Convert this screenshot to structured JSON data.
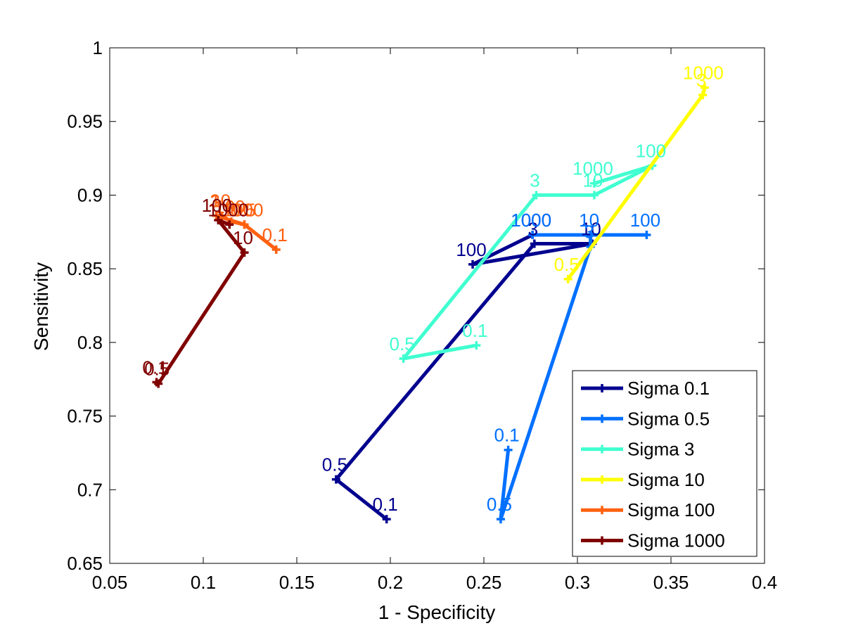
{
  "chart_data": {
    "type": "line",
    "xlabel": "1 - Specificity",
    "ylabel": "Sensitivity",
    "xlim": [
      0.05,
      0.4
    ],
    "ylim": [
      0.65,
      1
    ],
    "x_ticks": [
      0.05,
      0.1,
      0.15,
      0.2,
      0.25,
      0.3,
      0.35,
      0.4
    ],
    "x_tick_labels": [
      "0.05",
      "0.1",
      "0.15",
      "0.2",
      "0.25",
      "0.3",
      "0.35",
      "0.4"
    ],
    "y_ticks": [
      0.65,
      0.7,
      0.75,
      0.8,
      0.85,
      0.9,
      0.95,
      1
    ],
    "y_tick_labels": [
      "0.65",
      "0.7",
      "0.75",
      "0.8",
      "0.85",
      "0.9",
      "0.95",
      "1"
    ],
    "grid": false,
    "legend_position": "bottom-right",
    "series": [
      {
        "name": "Sigma 0.1",
        "color": "#00008f",
        "points": [
          {
            "label": "0.1",
            "x": 0.198,
            "y": 0.68
          },
          {
            "label": "0.5",
            "x": 0.171,
            "y": 0.707
          },
          {
            "label": "3",
            "x": 0.277,
            "y": 0.867
          },
          {
            "label": "10",
            "x": 0.308,
            "y": 0.867
          },
          {
            "label": "100",
            "x": 0.244,
            "y": 0.853
          },
          {
            "label": "1000",
            "x": 0.276,
            "y": 0.873
          }
        ]
      },
      {
        "name": "Sigma 0.5",
        "color": "#0070ff",
        "points": [
          {
            "label": "0.1",
            "x": 0.263,
            "y": 0.727
          },
          {
            "label": "0.5",
            "x": 0.259,
            "y": 0.68
          },
          {
            "label": "3",
            "x": 0.307,
            "y": 0.865
          },
          {
            "label": "10",
            "x": 0.307,
            "y": 0.873
          },
          {
            "label": "100",
            "x": 0.337,
            "y": 0.873
          },
          {
            "label": "1000",
            "x": 0.276,
            "y": 0.873
          }
        ]
      },
      {
        "name": "Sigma 3",
        "color": "#40ffd0",
        "points": [
          {
            "label": "0.1",
            "x": 0.246,
            "y": 0.798
          },
          {
            "label": "0.5",
            "x": 0.207,
            "y": 0.789
          },
          {
            "label": "3",
            "x": 0.278,
            "y": 0.9
          },
          {
            "label": "10",
            "x": 0.309,
            "y": 0.9
          },
          {
            "label": "100",
            "x": 0.34,
            "y": 0.92
          },
          {
            "label": "1000",
            "x": 0.309,
            "y": 0.908
          }
        ]
      },
      {
        "name": "Sigma 10",
        "color": "#ffff00",
        "points": [
          {
            "label": "0.5",
            "x": 0.295,
            "y": 0.843
          },
          {
            "label": "3",
            "x": 0.367,
            "y": 0.968
          },
          {
            "label": "1000",
            "x": 0.368,
            "y": 0.973
          }
        ]
      },
      {
        "name": "Sigma 100",
        "color": "#ff6010",
        "points": [
          {
            "label": "0.1",
            "x": 0.139,
            "y": 0.863
          },
          {
            "label": "0.5",
            "x": 0.122,
            "y": 0.88
          },
          {
            "label": "3",
            "x": 0.107,
            "y": 0.886
          },
          {
            "label": "10",
            "x": 0.11,
            "y": 0.886
          },
          {
            "label": "100",
            "x": 0.115,
            "y": 0.882
          },
          {
            "label": "1000",
            "x": 0.122,
            "y": 0.88
          }
        ]
      },
      {
        "name": "Sigma 1000",
        "color": "#800000",
        "points": [
          {
            "label": "0.1",
            "x": 0.075,
            "y": 0.773
          },
          {
            "label": "0.5",
            "x": 0.076,
            "y": 0.772
          },
          {
            "label": "10",
            "x": 0.122,
            "y": 0.861
          },
          {
            "label": "100",
            "x": 0.108,
            "y": 0.883
          },
          {
            "label": "1000",
            "x": 0.114,
            "y": 0.88
          }
        ]
      }
    ]
  }
}
